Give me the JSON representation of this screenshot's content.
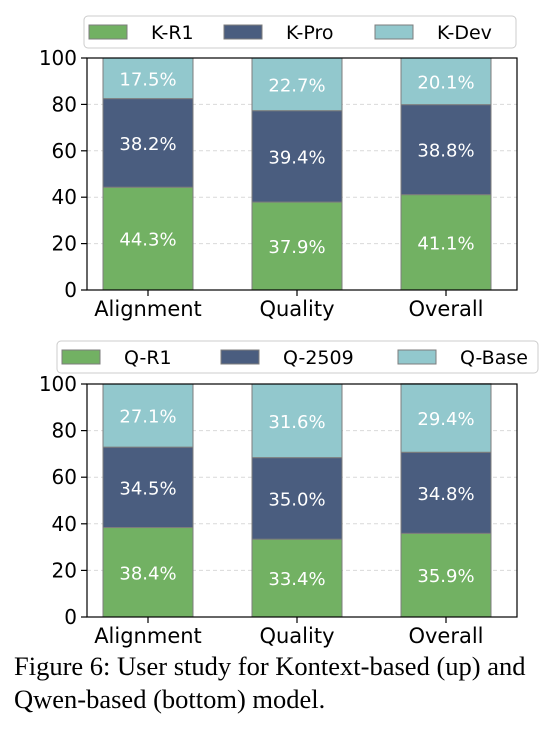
{
  "chart_data": [
    {
      "type": "bar",
      "stacked": true,
      "categories": [
        "Alignment",
        "Quality",
        "Overall"
      ],
      "series": [
        {
          "name": "K-R1",
          "values": [
            44.3,
            37.9,
            41.1
          ],
          "labels": [
            "44.3%",
            "37.9%",
            "41.1%"
          ],
          "color": "#72b163"
        },
        {
          "name": "K-Pro",
          "values": [
            38.2,
            39.4,
            38.8
          ],
          "labels": [
            "38.2%",
            "39.4%",
            "38.8%"
          ],
          "color": "#4a5d7f"
        },
        {
          "name": "K-Dev",
          "values": [
            17.5,
            22.7,
            20.1
          ],
          "labels": [
            "17.5%",
            "22.7%",
            "20.1%"
          ],
          "color": "#92c8cd"
        }
      ],
      "ylim": [
        0,
        100
      ],
      "yticks": [
        "0",
        "20",
        "40",
        "60",
        "80",
        "100"
      ],
      "grid": "y-dashed",
      "legend": "top"
    },
    {
      "type": "bar",
      "stacked": true,
      "categories": [
        "Alignment",
        "Quality",
        "Overall"
      ],
      "series": [
        {
          "name": "Q-R1",
          "values": [
            38.4,
            33.4,
            35.9
          ],
          "labels": [
            "38.4%",
            "33.4%",
            "35.9%"
          ],
          "color": "#72b163"
        },
        {
          "name": "Q-2509",
          "values": [
            34.5,
            35.0,
            34.8
          ],
          "labels": [
            "34.5%",
            "35.0%",
            "34.8%"
          ],
          "color": "#4a5d7f"
        },
        {
          "name": "Q-Base",
          "values": [
            27.1,
            31.6,
            29.4
          ],
          "labels": [
            "27.1%",
            "31.6%",
            "29.4%"
          ],
          "color": "#92c8cd"
        }
      ],
      "ylim": [
        0,
        100
      ],
      "yticks": [
        "0",
        "20",
        "40",
        "60",
        "80",
        "100"
      ],
      "grid": "y-dashed",
      "legend": "top"
    }
  ],
  "caption": {
    "text": "Figure 6:  User study for Kontext-based (up) and Qwen-based (bottom) model."
  }
}
